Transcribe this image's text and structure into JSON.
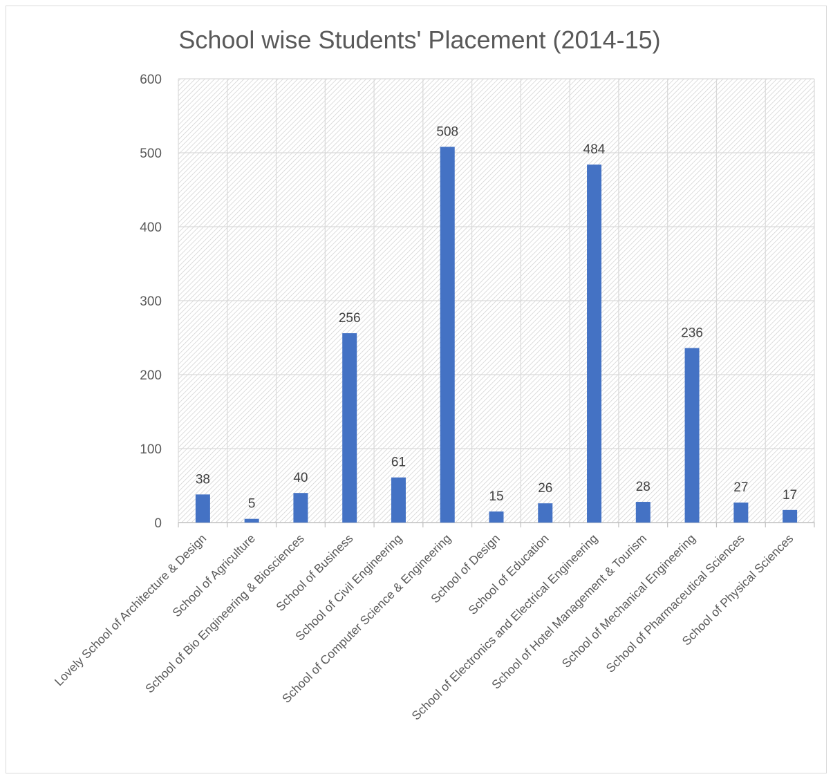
{
  "chart_data": {
    "type": "bar",
    "title": "School wise Students' Placement (2014-15)",
    "categories": [
      "Lovely School of Architecture & Design",
      "School of Agriculture",
      "School of Bio Engineering & Biosciences",
      "School of Business",
      "School of Civil Engineering",
      "School of Computer Science & Engineering",
      "School of Design",
      "School of Education",
      "School of Electronics and Electrical Engineering",
      "School of Hotel Management & Tourism",
      "School of Mechanical Engineering",
      "School of Pharmaceutical Sciences",
      "School of Physical Sciences"
    ],
    "values": [
      38,
      5,
      40,
      256,
      61,
      508,
      15,
      26,
      484,
      28,
      236,
      27,
      17
    ],
    "value_labels": [
      "38",
      "5",
      "40",
      "256",
      "61",
      "508",
      "15",
      "26",
      "484",
      "28",
      "236",
      "27",
      "17"
    ],
    "ylim": [
      0,
      600
    ],
    "yticks": [
      0,
      100,
      200,
      300,
      400,
      500,
      600
    ],
    "ytick_labels": [
      "0",
      "100",
      "200",
      "300",
      "400",
      "500",
      "600"
    ],
    "xlabel": "",
    "ylabel": "",
    "grid": true,
    "legend": "none",
    "colors": {
      "bar": "#4472c4",
      "grid": "#d9d9d9",
      "hatch": "#cfcfcf",
      "text": "#595959"
    }
  }
}
